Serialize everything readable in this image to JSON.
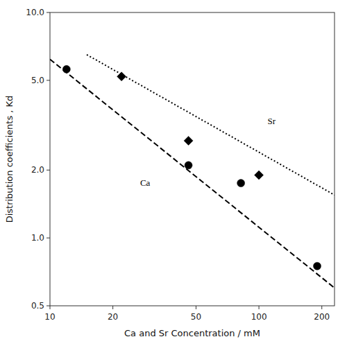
{
  "chart_data": {
    "type": "scatter",
    "log": true,
    "grid": false,
    "x_label": "Ca and Sr Concentration / mM",
    "y_label": "Distribution coefficients , Kd",
    "xlim": [
      10,
      230
    ],
    "ylim": [
      0.5,
      10
    ],
    "xticks": [
      10,
      20,
      50,
      100,
      200
    ],
    "yticks": [
      0.5,
      {
        "value": 1,
        "label": "1.0"
      },
      {
        "value": 2,
        "label": "2.0"
      },
      {
        "value": 5,
        "label": "5.0"
      },
      {
        "value": 10,
        "label": "10.0"
      }
    ],
    "series": [
      {
        "type": "scatter",
        "marker": "circle",
        "color": "#000000",
        "x": [
          12,
          46,
          82,
          190
        ],
        "values": [
          5.6,
          2.1,
          1.75,
          0.75
        ]
      },
      {
        "type": "scatter",
        "marker": "diamond",
        "color": "#000000",
        "x": [
          22,
          46,
          100
        ],
        "values": [
          5.2,
          2.7,
          1.9
        ]
      },
      {
        "type": "line",
        "line_style": "dashed",
        "color": "#000000",
        "x": [
          10,
          230
        ],
        "values": [
          6.2,
          0.6
        ]
      },
      {
        "type": "line",
        "line_style": "dotted",
        "color": "#000000",
        "x": [
          15,
          230
        ],
        "values": [
          6.5,
          1.55
        ]
      }
    ],
    "annotations": [
      {
        "text": "Ca",
        "x": 27,
        "y": 1.7
      },
      {
        "text": "Sr",
        "x": 110,
        "y": 3.2
      }
    ]
  }
}
